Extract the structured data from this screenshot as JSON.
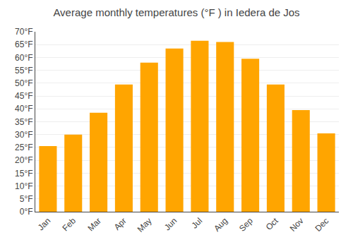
{
  "chart_data": {
    "type": "bar",
    "title": "Average monthly temperatures (°F ) in Iedera de Jos",
    "categories": [
      "Jan",
      "Feb",
      "Mar",
      "Apr",
      "May",
      "Jun",
      "Jul",
      "Aug",
      "Sep",
      "Oct",
      "Nov",
      "Dec"
    ],
    "values": [
      25.5,
      30.0,
      38.5,
      49.5,
      58.0,
      63.5,
      66.5,
      66.0,
      59.5,
      49.5,
      39.5,
      30.5
    ],
    "color": "#FFA500",
    "ylim": [
      0,
      70
    ],
    "yticks": [
      {
        "value": 0,
        "label": "0°F"
      },
      {
        "value": 5,
        "label": "5°F"
      },
      {
        "value": 10,
        "label": "10°F"
      },
      {
        "value": 15,
        "label": "15°F"
      },
      {
        "value": 20,
        "label": "20°F"
      },
      {
        "value": 25,
        "label": "25°F"
      },
      {
        "value": 30,
        "label": "30°F"
      },
      {
        "value": 35,
        "label": "35°F"
      },
      {
        "value": 40,
        "label": "40°F"
      },
      {
        "value": 45,
        "label": "45°F"
      },
      {
        "value": 50,
        "label": "50°F"
      },
      {
        "value": 55,
        "label": "55°F"
      },
      {
        "value": 60,
        "label": "60°F"
      },
      {
        "value": 65,
        "label": "65°F"
      },
      {
        "value": 70,
        "label": "70°F"
      }
    ],
    "grid": true
  }
}
